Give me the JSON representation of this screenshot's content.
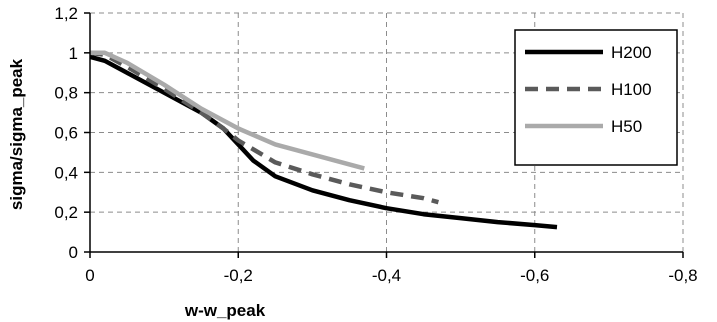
{
  "chart_data": {
    "type": "line",
    "xlabel": "w-w_peak",
    "ylabel": "sigma/sigma_peak",
    "xlim": [
      0,
      -0.8
    ],
    "ylim": [
      0,
      1.2
    ],
    "x_ticks": [
      "0",
      "-0,2",
      "-0,4",
      "-0,6",
      "-0,8"
    ],
    "x_tick_values": [
      0,
      -0.2,
      -0.4,
      -0.6,
      -0.8
    ],
    "y_ticks": [
      "0",
      "0,2",
      "0,4",
      "0,6",
      "0,8",
      "1",
      "1,2"
    ],
    "y_tick_values": [
      0,
      0.2,
      0.4,
      0.6,
      0.8,
      1.0,
      1.2
    ],
    "grid": true,
    "legend_position": "top-right",
    "series": [
      {
        "name": "H200",
        "color": "#000000",
        "style": "solid",
        "x": [
          0,
          -0.02,
          -0.05,
          -0.1,
          -0.15,
          -0.18,
          -0.2,
          -0.22,
          -0.25,
          -0.3,
          -0.35,
          -0.4,
          -0.45,
          -0.5,
          -0.55,
          -0.6,
          -0.63
        ],
        "y": [
          0.98,
          0.96,
          0.9,
          0.8,
          0.7,
          0.62,
          0.54,
          0.46,
          0.38,
          0.31,
          0.26,
          0.22,
          0.19,
          0.17,
          0.15,
          0.135,
          0.125
        ]
      },
      {
        "name": "H100",
        "color": "#5a5a5a",
        "style": "dashed",
        "x": [
          0,
          -0.02,
          -0.05,
          -0.1,
          -0.15,
          -0.18,
          -0.2,
          -0.25,
          -0.3,
          -0.35,
          -0.4,
          -0.45,
          -0.47
        ],
        "y": [
          1.0,
          0.99,
          0.93,
          0.82,
          0.7,
          0.62,
          0.56,
          0.45,
          0.39,
          0.34,
          0.3,
          0.27,
          0.25
        ]
      },
      {
        "name": "H50",
        "color": "#aaaaaa",
        "style": "solid",
        "x": [
          0,
          -0.02,
          -0.05,
          -0.1,
          -0.15,
          -0.2,
          -0.25,
          -0.3,
          -0.35,
          -0.37
        ],
        "y": [
          1.0,
          1.0,
          0.95,
          0.84,
          0.72,
          0.62,
          0.54,
          0.49,
          0.44,
          0.42
        ]
      }
    ]
  }
}
